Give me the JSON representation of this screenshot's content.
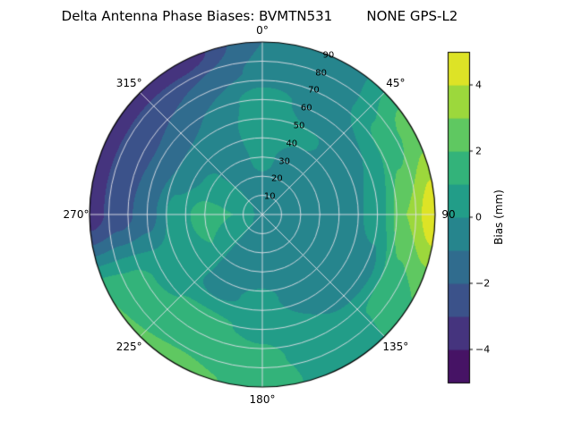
{
  "title": "Delta Antenna Phase Biases: BVMTN531        NONE GPS-L2",
  "chart_data": {
    "type": "heatmap",
    "projection": "polar",
    "title": "Delta Antenna Phase Biases: BVMTN531        NONE GPS-L2",
    "azimuth_ticks": [
      "0°",
      "45°",
      "90",
      "135°",
      "180°",
      "225°",
      "270°",
      "315°"
    ],
    "azimuth_tick_angles_deg": [
      0,
      45,
      90,
      135,
      180,
      225,
      270,
      315
    ],
    "radial_ticks": [
      "10",
      "20",
      "30",
      "40",
      "50",
      "60",
      "70",
      "80",
      "90"
    ],
    "radial_tick_values": [
      10,
      20,
      30,
      40,
      50,
      60,
      70,
      80,
      90
    ],
    "radial_range": [
      0,
      90
    ],
    "grid": true,
    "azimuth_deg": [
      0,
      30,
      60,
      90,
      120,
      150,
      180,
      210,
      240,
      270,
      300,
      330
    ],
    "zenith_deg": [
      0,
      15,
      30,
      45,
      60,
      75,
      90
    ],
    "bias_mm": [
      [
        -0.2,
        -0.2,
        -0.2,
        -0.2,
        -0.2,
        -0.2,
        -0.2,
        -0.2,
        -0.2,
        -0.2,
        -0.2,
        -0.2
      ],
      [
        -0.3,
        -0.3,
        -0.3,
        -0.3,
        -0.3,
        -0.3,
        -0.3,
        -0.3,
        0.5,
        1.0,
        0.5,
        -0.3
      ],
      [
        0.3,
        -0.5,
        -0.5,
        -0.5,
        -0.5,
        -0.5,
        -0.5,
        -0.5,
        1.0,
        1.5,
        0.3,
        -0.5
      ],
      [
        0.8,
        0.2,
        -0.7,
        -0.5,
        -0.7,
        -0.7,
        0.3,
        -0.3,
        0.5,
        0.5,
        -0.7,
        -0.7
      ],
      [
        0.5,
        -0.5,
        0.0,
        0.5,
        -0.5,
        0.0,
        0.8,
        1.2,
        0.8,
        -1.5,
        -1.8,
        -1.0
      ],
      [
        -0.8,
        -0.5,
        1.5,
        3.0,
        1.5,
        0.3,
        1.2,
        1.8,
        1.5,
        -2.5,
        -2.8,
        -2.0
      ],
      [
        -1.0,
        -0.5,
        2.5,
        4.8,
        2.0,
        0.0,
        1.8,
        2.2,
        2.0,
        -3.5,
        -3.2,
        -3.8
      ]
    ],
    "contour_levels": [
      -5,
      -4,
      -3,
      -2,
      -1,
      0,
      1,
      2,
      3,
      4,
      5
    ],
    "colorbar": {
      "label": "Bias (mm)",
      "ticks": [
        "4",
        "2",
        "0",
        "−2",
        "−4"
      ],
      "tick_values": [
        4,
        2,
        0,
        -2,
        -4
      ],
      "range": [
        -5,
        5
      ],
      "colormap": "viridis",
      "position": "right"
    }
  }
}
